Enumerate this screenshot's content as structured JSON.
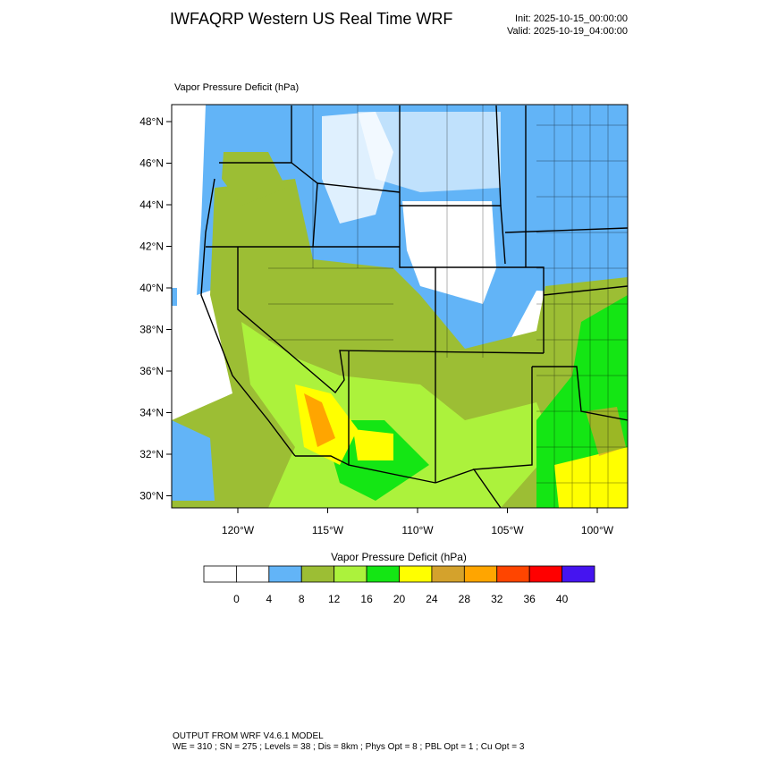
{
  "header": {
    "title": "IWFAQRP Western US Real Time WRF",
    "init": "Init: 2025-10-15_00:00:00",
    "valid": "Valid: 2025-10-19_04:00:00"
  },
  "map": {
    "field_label": "Vapor Pressure Deficit   (hPa)",
    "lat_labels": [
      "48°N",
      "46°N",
      "44°N",
      "42°N",
      "40°N",
      "38°N",
      "36°N",
      "34°N",
      "32°N",
      "30°N"
    ],
    "lon_labels": [
      "120°W",
      "115°W",
      "110°W",
      "105°W",
      "100°W"
    ]
  },
  "colorbar": {
    "label": "Vapor Pressure Deficit  (hPa)",
    "levels": [
      "0",
      "4",
      "8",
      "12",
      "16",
      "20",
      "24",
      "28",
      "32",
      "36",
      "40"
    ],
    "colors": [
      "#ffffff",
      "#ffffff",
      "#62b4f7",
      "#9cbe34",
      "#acf23c",
      "#14e614",
      "#ffff00",
      "#d4a22c",
      "#ffa500",
      "#ff4500",
      "#ff0000",
      "#4514f0"
    ]
  },
  "footer": {
    "line1": "OUTPUT FROM WRF V4.6.1 MODEL",
    "line2": "WE = 310 ; SN = 275 ; Levels = 38 ; Dis = 8km ; Phys Opt = 8 ; PBL Opt = 1 ; Cu Opt = 3"
  }
}
